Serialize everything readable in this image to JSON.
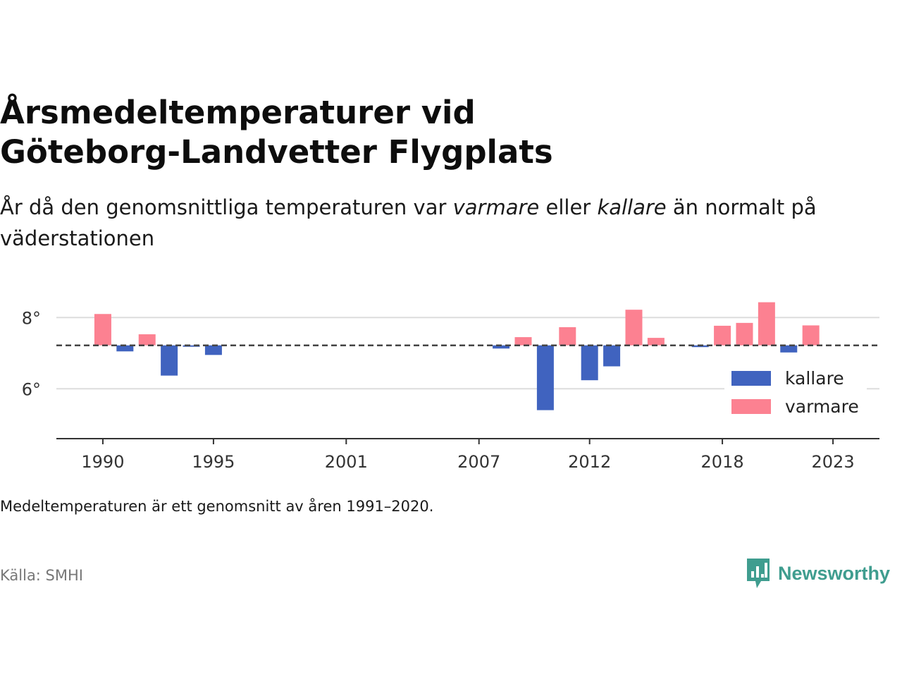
{
  "header": {
    "title_line1": "Årsmedeltemperaturer vid",
    "title_line2": "Göteborg-Landvetter Flygplats",
    "subtitle_part1": "År då den genomsnittliga temperaturen var ",
    "subtitle_em1": "varmare",
    "subtitle_part2": " eller ",
    "subtitle_em2": "kallare",
    "subtitle_part3": " än normalt på väderstationen"
  },
  "footer": {
    "note": "Medeltemperaturen är ett genomsnitt av åren 1991–2020.",
    "source": "Källa: SMHI",
    "brand": "Newsworthy"
  },
  "colors": {
    "kallare": "#4063bf",
    "varmare": "#fc8191",
    "grid": "#dddddd",
    "axis": "#333333",
    "brand": "#3f9d8f"
  },
  "chart_data": {
    "type": "bar",
    "baseline": 7.22,
    "ylim": [
      4.6,
      8.6
    ],
    "xlim": [
      1987.9,
      2025.1
    ],
    "y_ticks": [
      6,
      8
    ],
    "y_tick_labels": [
      "6°",
      "8°"
    ],
    "x_ticks": [
      1990,
      1995,
      2001,
      2007,
      2012,
      2018,
      2023
    ],
    "x_tick_labels": [
      "1990",
      "1995",
      "2001",
      "2007",
      "2012",
      "2018",
      "2023"
    ],
    "grid": true,
    "legend_position": "right",
    "legend": [
      {
        "key": "kallare",
        "label": "kallare"
      },
      {
        "key": "varmare",
        "label": "varmare"
      }
    ],
    "series": [
      {
        "year": 1990,
        "value": 8.1,
        "category": "varmare"
      },
      {
        "year": 1991,
        "value": 7.05,
        "category": "kallare"
      },
      {
        "year": 1992,
        "value": 7.53,
        "category": "varmare"
      },
      {
        "year": 1993,
        "value": 6.37,
        "category": "kallare"
      },
      {
        "year": 1994,
        "value": 7.18,
        "category": "kallare"
      },
      {
        "year": 1995,
        "value": 6.95,
        "category": "kallare"
      },
      {
        "year": 2008,
        "value": 7.13,
        "category": "kallare"
      },
      {
        "year": 2009,
        "value": 7.45,
        "category": "varmare"
      },
      {
        "year": 2010,
        "value": 5.4,
        "category": "kallare"
      },
      {
        "year": 2011,
        "value": 7.73,
        "category": "varmare"
      },
      {
        "year": 2012,
        "value": 6.24,
        "category": "kallare"
      },
      {
        "year": 2013,
        "value": 6.63,
        "category": "kallare"
      },
      {
        "year": 2014,
        "value": 8.22,
        "category": "varmare"
      },
      {
        "year": 2015,
        "value": 7.43,
        "category": "varmare"
      },
      {
        "year": 2017,
        "value": 7.17,
        "category": "kallare"
      },
      {
        "year": 2018,
        "value": 7.77,
        "category": "varmare"
      },
      {
        "year": 2019,
        "value": 7.85,
        "category": "varmare"
      },
      {
        "year": 2020,
        "value": 8.43,
        "category": "varmare"
      },
      {
        "year": 2021,
        "value": 7.02,
        "category": "kallare"
      },
      {
        "year": 2022,
        "value": 7.78,
        "category": "varmare"
      }
    ]
  }
}
